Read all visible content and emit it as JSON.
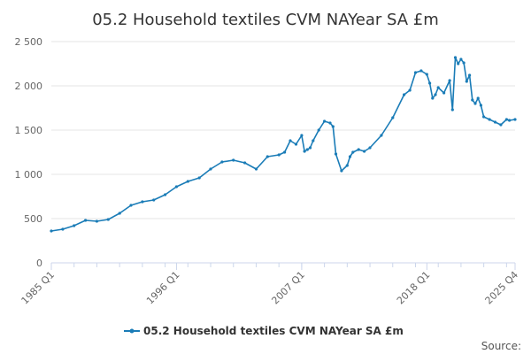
{
  "chart_data": {
    "type": "line",
    "title": "05.2 Household textiles CVM NAYear SA £m",
    "xlabel": "",
    "ylabel": "",
    "ylim": [
      0,
      2500
    ],
    "yticks": [
      0,
      500,
      1000,
      1500,
      2000,
      2500
    ],
    "ytick_labels": [
      "0",
      "500",
      "1 000",
      "1 500",
      "2 000",
      "2 500"
    ],
    "xticks": [
      "1985 Q1",
      "1996 Q1",
      "2007 Q1",
      "2018 Q1",
      "2025 Q4"
    ],
    "grid": true,
    "legend": "bottom-center",
    "source_label": "Source:",
    "colors": {
      "series": "#1a7cb7",
      "grid": "#e6e6e6",
      "axis": "#ccd6eb"
    },
    "series": [
      {
        "name": "05.2 Household textiles CVM NAYear SA £m",
        "x": [
          "1985 Q1",
          "1986 Q1",
          "1987 Q1",
          "1988 Q1",
          "1989 Q1",
          "1990 Q1",
          "1991 Q1",
          "1992 Q1",
          "1993 Q1",
          "1994 Q1",
          "1995 Q1",
          "1996 Q1",
          "1997 Q1",
          "1998 Q1",
          "1999 Q1",
          "2000 Q1",
          "2001 Q1",
          "2002 Q1",
          "2003 Q1",
          "2004 Q1",
          "2005 Q1",
          "2005 Q3",
          "2006 Q1",
          "2006 Q3",
          "2007 Q1",
          "2007 Q2",
          "2007 Q3",
          "2007 Q4",
          "2008 Q1",
          "2008 Q3",
          "2009 Q1",
          "2009 Q3",
          "2009 Q4",
          "2010 Q1",
          "2010 Q3",
          "2011 Q1",
          "2011 Q2",
          "2011 Q3",
          "2012 Q1",
          "2012 Q3",
          "2013 Q1",
          "2014 Q1",
          "2015 Q1",
          "2016 Q1",
          "2016 Q3",
          "2017 Q1",
          "2017 Q3",
          "2018 Q1",
          "2018 Q2",
          "2018 Q3",
          "2018 Q4",
          "2019 Q1",
          "2019 Q3",
          "2020 Q1",
          "2020 Q2",
          "2020 Q3",
          "2020 Q4",
          "2021 Q1",
          "2021 Q2",
          "2021 Q3",
          "2021 Q4",
          "2022 Q1",
          "2022 Q2",
          "2022 Q3",
          "2022 Q4",
          "2023 Q1",
          "2023 Q3",
          "2024 Q1",
          "2024 Q3",
          "2025 Q1",
          "2025 Q2",
          "2025 Q4"
        ],
        "values": [
          360,
          380,
          420,
          480,
          470,
          490,
          560,
          650,
          690,
          710,
          770,
          860,
          920,
          960,
          1060,
          1140,
          1160,
          1130,
          1060,
          1200,
          1220,
          1250,
          1380,
          1340,
          1440,
          1260,
          1280,
          1300,
          1380,
          1500,
          1600,
          1580,
          1540,
          1230,
          1040,
          1100,
          1200,
          1250,
          1280,
          1260,
          1300,
          1440,
          1640,
          1900,
          1950,
          2150,
          2170,
          2130,
          2030,
          1860,
          1900,
          1980,
          1920,
          2060,
          1730,
          2320,
          2250,
          2300,
          2260,
          2050,
          2120,
          1840,
          1800,
          1860,
          1780,
          1650,
          1620,
          1590,
          1560,
          1620,
          1610,
          1620
        ]
      }
    ]
  }
}
